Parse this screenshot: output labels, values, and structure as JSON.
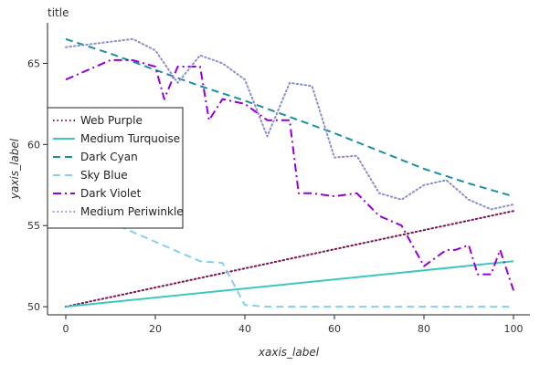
{
  "chart_data": {
    "type": "line",
    "title": "title",
    "xlabel": "xaxis_label",
    "ylabel": "yaxis_label",
    "xlim": [
      0,
      100
    ],
    "ylim": [
      49.5,
      67.5
    ],
    "xticks": [
      0,
      20,
      40,
      60,
      80,
      100
    ],
    "yticks": [
      50,
      55,
      60,
      65
    ],
    "grid": false,
    "legend_position": "left",
    "series": [
      {
        "name": "Web Purple",
        "color": "#7b1450",
        "dash": "dotted",
        "x": [
          0,
          100
        ],
        "y": [
          50.0,
          55.9
        ]
      },
      {
        "name": "Medium Turquoise",
        "color": "#3cc8c0",
        "dash": "solid",
        "x": [
          0,
          100
        ],
        "y": [
          50.0,
          52.8
        ]
      },
      {
        "name": "Dark Cyan",
        "color": "#1a8f9e",
        "dash": "dashed",
        "x": [
          0,
          10,
          20,
          30,
          40,
          50,
          60,
          70,
          80,
          90,
          100
        ],
        "y": [
          66.5,
          65.6,
          64.6,
          63.6,
          62.7,
          61.7,
          60.7,
          59.6,
          58.5,
          57.6,
          56.8
        ]
      },
      {
        "name": "Sky Blue",
        "color": "#87ceeb",
        "dash": "dashed",
        "x": [
          0,
          10,
          20,
          30,
          35,
          40,
          45,
          50,
          60,
          70,
          80,
          90,
          100
        ],
        "y": [
          56.6,
          55.2,
          54.0,
          52.8,
          52.7,
          50.1,
          50.0,
          50.0,
          50.0,
          50.0,
          50.0,
          50.0,
          50.0
        ]
      },
      {
        "name": "Dark Violet",
        "color": "#9400d3",
        "dash": "dashdot",
        "x": [
          0,
          10,
          15,
          20,
          22,
          25,
          30,
          32,
          35,
          40,
          45,
          50,
          52,
          55,
          60,
          65,
          70,
          75,
          80,
          85,
          87,
          90,
          92,
          95,
          97,
          100
        ],
        "y": [
          64.0,
          65.2,
          65.2,
          64.8,
          62.8,
          64.8,
          64.8,
          61.5,
          62.8,
          62.5,
          61.5,
          61.5,
          57.0,
          57.0,
          56.8,
          57.0,
          55.6,
          55.0,
          52.5,
          53.5,
          53.5,
          53.8,
          52.0,
          52.0,
          53.5,
          51.0
        ]
      },
      {
        "name": "Medium Periwinkle",
        "color": "#8b8ecf",
        "dash": "dotted",
        "x": [
          0,
          15,
          20,
          25,
          30,
          35,
          40,
          45,
          50,
          55,
          60,
          65,
          70,
          75,
          80,
          85,
          90,
          95,
          100
        ],
        "y": [
          66.0,
          66.5,
          65.8,
          63.8,
          65.5,
          65.0,
          64.0,
          60.5,
          63.8,
          63.6,
          59.2,
          59.3,
          57.0,
          56.6,
          57.5,
          57.8,
          56.6,
          56.0,
          56.3
        ]
      }
    ]
  }
}
